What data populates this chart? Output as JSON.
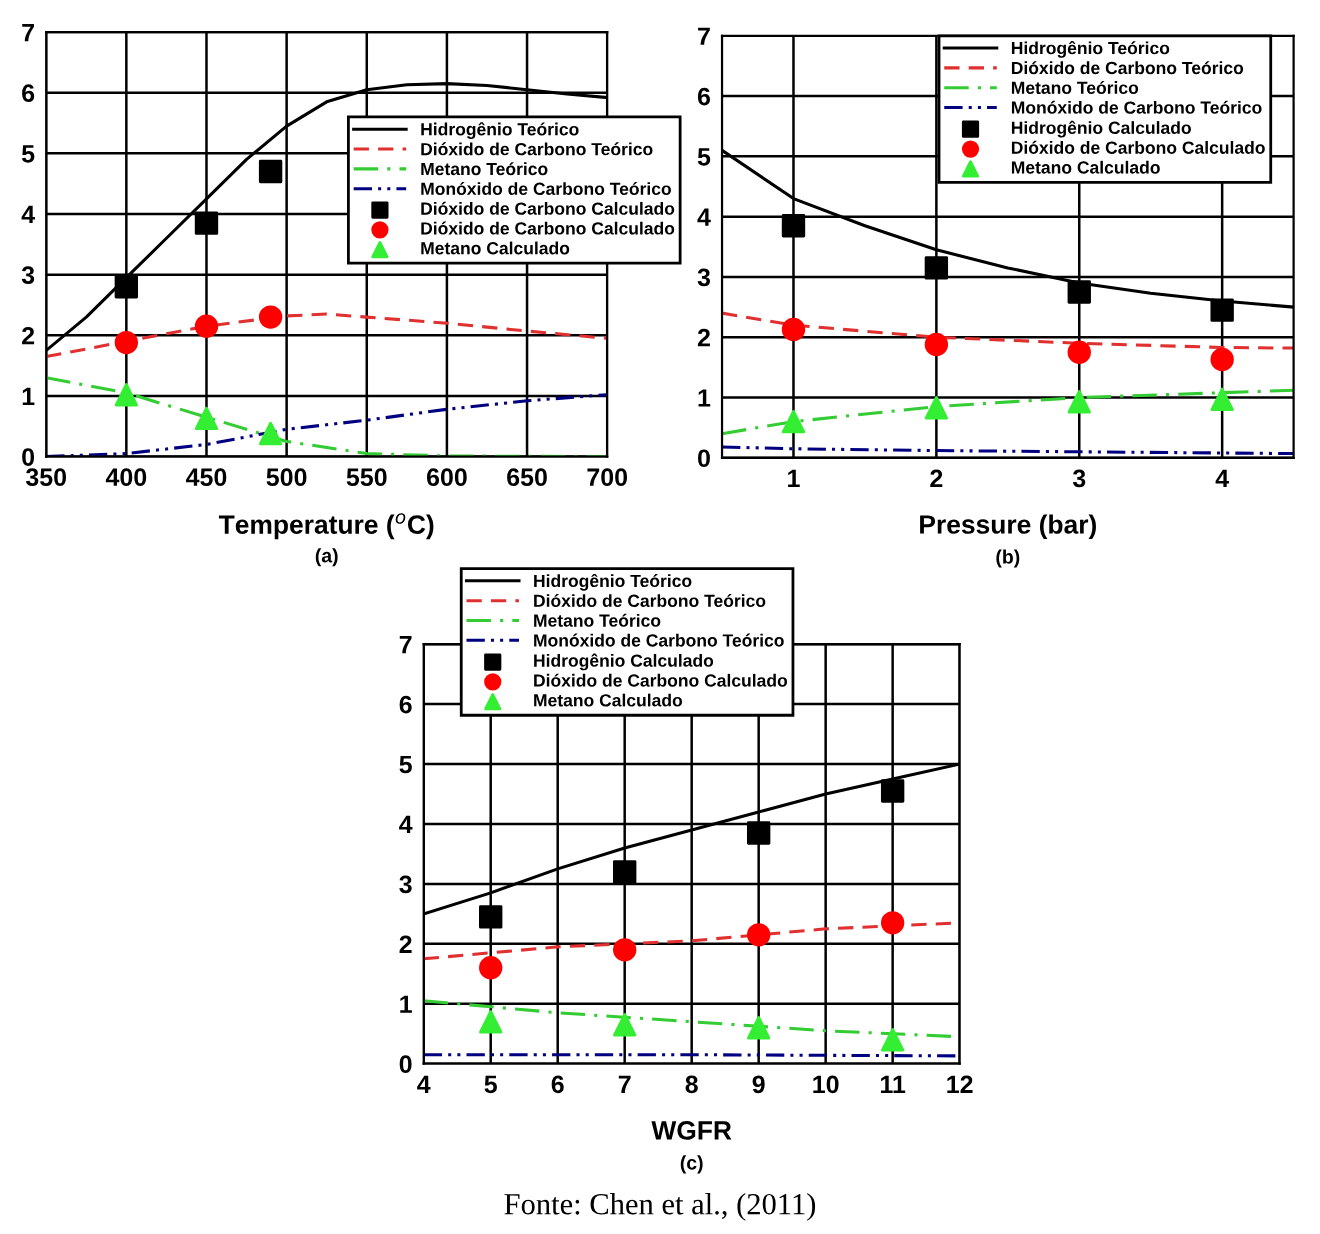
{
  "chart_data": [
    {
      "type": "line",
      "xlabel": "Temperature ($^{o}$C)",
      "xlim": [
        350,
        700
      ],
      "xticks": [
        350,
        400,
        450,
        500,
        550,
        600,
        650,
        700
      ],
      "ylim": [
        0,
        7
      ],
      "yticks": [
        0,
        1,
        2,
        3,
        4,
        5,
        6,
        7
      ],
      "grid": true,
      "legend": "right",
      "annotations": [
        "(a)"
      ],
      "series": [
        {
          "name": "Hidrogênio Teórico",
          "type": "line",
          "color": "#000000",
          "line_style": "solid",
          "x": [
            350,
            375,
            400,
            425,
            450,
            475,
            500,
            525,
            550,
            575,
            600,
            625,
            650,
            675,
            700
          ],
          "values": [
            1.75,
            2.3,
            2.95,
            3.6,
            4.25,
            4.9,
            5.45,
            5.85,
            6.05,
            6.13,
            6.15,
            6.12,
            6.05,
            5.98,
            5.92
          ]
        },
        {
          "name": "Dióxido de Carbono Teórico",
          "type": "line",
          "color": "#e03030",
          "line_style": "dashed",
          "x": [
            350,
            400,
            450,
            500,
            525,
            550,
            600,
            650,
            700
          ],
          "values": [
            1.65,
            1.9,
            2.15,
            2.32,
            2.35,
            2.3,
            2.2,
            2.07,
            1.95
          ]
        },
        {
          "name": "Metano Teórico",
          "type": "line",
          "color": "#33cc33",
          "line_style": "dashdot",
          "x": [
            350,
            400,
            450,
            500,
            550,
            600,
            700
          ],
          "values": [
            1.3,
            1.05,
            0.65,
            0.25,
            0.05,
            0.01,
            0.0
          ]
        },
        {
          "name": "Monóxido de Carbono Teórico",
          "type": "line",
          "color": "#000080",
          "line_style": "dashdotdot",
          "x": [
            350,
            400,
            450,
            500,
            550,
            600,
            650,
            700
          ],
          "values": [
            0.0,
            0.05,
            0.2,
            0.45,
            0.6,
            0.78,
            0.92,
            1.02
          ]
        },
        {
          "name": "Dióxido de Carbono Calculado",
          "type": "scatter",
          "marker": "square",
          "color": "#000000",
          "x": [
            400,
            450,
            490
          ],
          "values": [
            2.8,
            3.85,
            4.7
          ]
        },
        {
          "name": "Dióxido de Carbono Calculado",
          "type": "scatter",
          "marker": "circle",
          "color": "#ff0000",
          "x": [
            400,
            450,
            490
          ],
          "values": [
            1.88,
            2.15,
            2.3
          ]
        },
        {
          "name": "Metano Calculado",
          "type": "scatter",
          "marker": "triangle",
          "color": "#33ee33",
          "x": [
            400,
            450,
            490
          ],
          "values": [
            1.02,
            0.63,
            0.38
          ]
        }
      ]
    },
    {
      "type": "line",
      "xlabel": "Pressure (bar)",
      "xlim": [
        0.5,
        4.5
      ],
      "xticks": [
        1,
        2,
        3,
        4
      ],
      "ylim": [
        0,
        7
      ],
      "yticks": [
        0,
        1,
        2,
        3,
        4,
        5,
        6,
        7
      ],
      "grid": true,
      "legend": "top right",
      "annotations": [
        "(b)"
      ],
      "series": [
        {
          "name": "Hidrogênio Teórico",
          "type": "line",
          "color": "#000000",
          "line_style": "solid",
          "x": [
            0.5,
            1,
            1.5,
            2,
            2.5,
            3,
            3.5,
            4,
            4.5
          ],
          "values": [
            5.1,
            4.3,
            3.85,
            3.45,
            3.15,
            2.9,
            2.73,
            2.6,
            2.5
          ]
        },
        {
          "name": "Dióxido de Carbono Teórico",
          "type": "line",
          "color": "#e03030",
          "line_style": "dashed",
          "x": [
            0.5,
            1,
            2,
            3,
            4,
            4.5
          ],
          "values": [
            2.4,
            2.2,
            2.0,
            1.9,
            1.83,
            1.82
          ]
        },
        {
          "name": "Metano Teórico",
          "type": "line",
          "color": "#33cc33",
          "line_style": "dashdot",
          "x": [
            0.5,
            1,
            2,
            3,
            4,
            4.5
          ],
          "values": [
            0.4,
            0.6,
            0.85,
            1.0,
            1.08,
            1.12
          ]
        },
        {
          "name": "Monóxido de Carbono Teórico",
          "type": "line",
          "color": "#000080",
          "line_style": "dashdotdot",
          "x": [
            0.5,
            1,
            2,
            3,
            4,
            4.5
          ],
          "values": [
            0.18,
            0.15,
            0.12,
            0.1,
            0.08,
            0.07
          ]
        },
        {
          "name": "Hidrogênio Calculado",
          "type": "scatter",
          "marker": "square",
          "color": "#000000",
          "x": [
            1,
            2,
            3,
            4
          ],
          "values": [
            3.85,
            3.15,
            2.75,
            2.45
          ]
        },
        {
          "name": "Dióxido de Carbono Calculado",
          "type": "scatter",
          "marker": "circle",
          "color": "#ff0000",
          "x": [
            1,
            2,
            3,
            4
          ],
          "values": [
            2.13,
            1.88,
            1.75,
            1.63
          ]
        },
        {
          "name": "Metano Calculado",
          "type": "scatter",
          "marker": "triangle",
          "color": "#33ee33",
          "x": [
            1,
            2,
            3,
            4
          ],
          "values": [
            0.6,
            0.83,
            0.93,
            0.97
          ]
        }
      ]
    },
    {
      "type": "line",
      "xlabel": "WGFR",
      "xlim": [
        4,
        12
      ],
      "xticks": [
        4,
        5,
        6,
        7,
        8,
        9,
        10,
        11,
        12
      ],
      "ylim": [
        0,
        7
      ],
      "yticks": [
        0,
        1,
        2,
        3,
        4,
        5,
        6,
        7
      ],
      "grid": true,
      "legend": "top left",
      "annotations": [
        "(c)",
        "Fonte: Chen et al., (2011)"
      ],
      "series": [
        {
          "name": "Hidrogênio Teórico",
          "type": "line",
          "color": "#000000",
          "line_style": "solid",
          "x": [
            4,
            5,
            6,
            7,
            8,
            9,
            10,
            11,
            12
          ],
          "values": [
            2.5,
            2.85,
            3.25,
            3.6,
            3.9,
            4.2,
            4.5,
            4.75,
            5.0
          ]
        },
        {
          "name": "Dióxido de Carbono Teórico",
          "type": "line",
          "color": "#e03030",
          "line_style": "dashed",
          "x": [
            4,
            6,
            8,
            10,
            12
          ],
          "values": [
            1.75,
            1.95,
            2.05,
            2.25,
            2.35
          ]
        },
        {
          "name": "Metano Teórico",
          "type": "line",
          "color": "#33cc33",
          "line_style": "dashdot",
          "x": [
            4,
            6,
            8,
            10,
            12
          ],
          "values": [
            1.05,
            0.85,
            0.7,
            0.55,
            0.45
          ]
        },
        {
          "name": "Monóxido de Carbono Teórico",
          "type": "line",
          "color": "#000080",
          "line_style": "dashdotdot",
          "x": [
            4,
            8,
            12
          ],
          "values": [
            0.15,
            0.15,
            0.13
          ]
        },
        {
          "name": "Hidrogênio Calculado",
          "type": "scatter",
          "marker": "square",
          "color": "#000000",
          "x": [
            5,
            7,
            9,
            11
          ],
          "values": [
            2.45,
            3.2,
            3.85,
            4.55
          ]
        },
        {
          "name": "Dióxido de Carbono Calculado",
          "type": "scatter",
          "marker": "circle",
          "color": "#ff0000",
          "x": [
            5,
            7,
            9,
            11
          ],
          "values": [
            1.6,
            1.9,
            2.15,
            2.35
          ]
        },
        {
          "name": "Metano Calculado",
          "type": "scatter",
          "marker": "triangle",
          "color": "#33ee33",
          "x": [
            5,
            7,
            9,
            11
          ],
          "values": [
            0.7,
            0.65,
            0.6,
            0.4
          ]
        }
      ]
    }
  ]
}
